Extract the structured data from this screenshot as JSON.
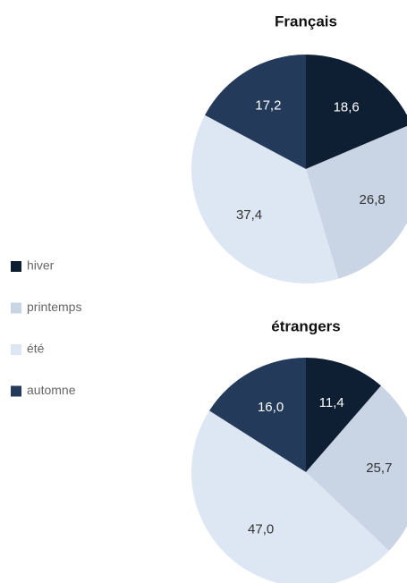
{
  "chart_data": [
    {
      "type": "pie",
      "title": "Français",
      "categories": [
        "hiver",
        "printemps",
        "été",
        "automne"
      ],
      "values": [
        18.6,
        26.8,
        37.4,
        17.2
      ],
      "value_labels": [
        "18,6",
        "26,8",
        "37,4",
        "17,2"
      ],
      "colors": [
        "#0f1f33",
        "#c9d4e5",
        "#dce7f3",
        "#243a5a"
      ]
    },
    {
      "type": "pie",
      "title": "étrangers",
      "categories": [
        "hiver",
        "printemps",
        "été",
        "automne"
      ],
      "values": [
        11.4,
        25.7,
        47.0,
        16.0
      ],
      "value_labels": [
        "11,4",
        "25,7",
        "47,0",
        "16,0"
      ],
      "colors": [
        "#0f1f33",
        "#c9d4e5",
        "#dce7f3",
        "#243a5a"
      ]
    }
  ]
}
